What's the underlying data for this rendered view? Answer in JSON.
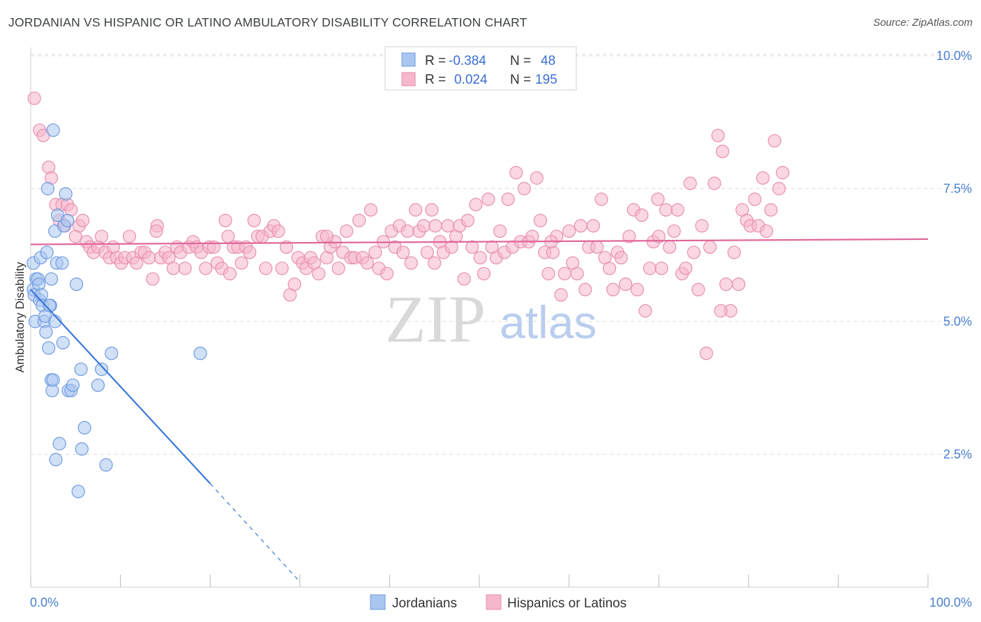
{
  "title": "JORDANIAN VS HISPANIC OR LATINO AMBULATORY DISABILITY CORRELATION CHART",
  "source": "Source: ZipAtlas.com",
  "watermark": {
    "part1": "ZIP",
    "part2": "atlas"
  },
  "colors": {
    "blue_fill": "#a9c6f0",
    "blue_stroke": "#6f9be0",
    "blue_line": "#3a78d8",
    "pink_fill": "#f5b7cb",
    "pink_stroke": "#e88fae",
    "pink_line": "#e0679a",
    "grid": "#dddddd",
    "tick_label": "#4a7fd0"
  },
  "legend": {
    "rows": [
      {
        "r_label": "R = ",
        "r_value": "-0.384",
        "n_label": "N = ",
        "n_value": "48"
      },
      {
        "r_label": "R = ",
        "r_value": "0.024",
        "n_label": "N = ",
        "n_value": "195"
      }
    ]
  },
  "chart_data": {
    "type": "scatter",
    "xlabel": "",
    "ylabel": "Ambulatory Disability",
    "xlim": [
      0,
      100
    ],
    "ylim": [
      0,
      10.5
    ],
    "x_tick_labels": [
      "0.0%",
      "100.0%"
    ],
    "y_ticks": [
      2.5,
      5.0,
      7.5,
      10.0
    ],
    "y_tick_labels": [
      "2.5%",
      "5.0%",
      "7.5%",
      "10.0%"
    ],
    "grid": "horizontal dashed",
    "legend_position": "top-center",
    "series": [
      {
        "name": "Jordanians",
        "trend": {
          "x0": 0,
          "y0": 5.6,
          "x1": 20,
          "y1": 1.95,
          "dash_to_x": 30,
          "dash_to_y": 0.1
        },
        "points": [
          [
            0.3,
            6.1
          ],
          [
            0.3,
            5.6
          ],
          [
            0.4,
            5.5
          ],
          [
            0.5,
            5.0
          ],
          [
            0.6,
            5.8
          ],
          [
            0.8,
            5.8
          ],
          [
            0.9,
            5.7
          ],
          [
            1.0,
            5.4
          ],
          [
            1.1,
            6.2
          ],
          [
            1.2,
            5.5
          ],
          [
            1.3,
            5.3
          ],
          [
            1.5,
            5.0
          ],
          [
            1.6,
            5.1
          ],
          [
            1.7,
            4.8
          ],
          [
            1.8,
            6.3
          ],
          [
            1.9,
            7.5
          ],
          [
            2.0,
            4.5
          ],
          [
            2.2,
            5.3
          ],
          [
            2.3,
            5.8
          ],
          [
            2.3,
            3.9
          ],
          [
            2.4,
            3.7
          ],
          [
            2.5,
            3.9
          ],
          [
            2.5,
            8.6
          ],
          [
            2.7,
            5.0
          ],
          [
            2.7,
            6.7
          ],
          [
            2.8,
            2.4
          ],
          [
            2.9,
            6.1
          ],
          [
            3.0,
            7.0
          ],
          [
            3.2,
            2.7
          ],
          [
            3.5,
            6.1
          ],
          [
            3.6,
            4.6
          ],
          [
            3.7,
            6.8
          ],
          [
            3.9,
            7.4
          ],
          [
            4.1,
            6.9
          ],
          [
            4.2,
            3.7
          ],
          [
            4.5,
            3.7
          ],
          [
            4.7,
            3.8
          ],
          [
            5.1,
            5.7
          ],
          [
            5.6,
            4.1
          ],
          [
            5.7,
            2.6
          ],
          [
            6.0,
            3.0
          ],
          [
            7.5,
            3.8
          ],
          [
            7.9,
            4.1
          ],
          [
            8.4,
            2.3
          ],
          [
            9.0,
            4.4
          ],
          [
            18.9,
            4.4
          ],
          [
            2.1,
            5.3
          ],
          [
            5.3,
            1.8
          ]
        ]
      },
      {
        "name": "Hispanics or Latinos",
        "trend": {
          "x0": 0,
          "y0": 6.45,
          "x1": 100,
          "y1": 6.55
        },
        "points": [
          [
            0.4,
            9.2
          ],
          [
            1.0,
            8.6
          ],
          [
            1.4,
            8.5
          ],
          [
            2.0,
            7.9
          ],
          [
            2.3,
            7.7
          ],
          [
            2.8,
            7.2
          ],
          [
            3.2,
            6.9
          ],
          [
            3.5,
            7.2
          ],
          [
            3.8,
            6.8
          ],
          [
            4.1,
            7.2
          ],
          [
            4.5,
            7.1
          ],
          [
            5.0,
            6.6
          ],
          [
            5.4,
            6.8
          ],
          [
            5.8,
            6.9
          ],
          [
            6.2,
            6.5
          ],
          [
            6.6,
            6.4
          ],
          [
            7.0,
            6.3
          ],
          [
            7.5,
            6.4
          ],
          [
            7.9,
            6.6
          ],
          [
            8.3,
            6.3
          ],
          [
            8.8,
            6.2
          ],
          [
            9.2,
            6.4
          ],
          [
            9.6,
            6.2
          ],
          [
            10.1,
            6.1
          ],
          [
            10.5,
            6.2
          ],
          [
            11.0,
            6.6
          ],
          [
            11.4,
            6.2
          ],
          [
            11.8,
            6.1
          ],
          [
            12.3,
            6.3
          ],
          [
            12.7,
            6.3
          ],
          [
            13.2,
            6.2
          ],
          [
            13.6,
            5.8
          ],
          [
            14.1,
            6.8
          ],
          [
            14.5,
            6.2
          ],
          [
            15.0,
            6.3
          ],
          [
            15.4,
            6.2
          ],
          [
            15.9,
            6.0
          ],
          [
            16.3,
            6.4
          ],
          [
            16.7,
            6.3
          ],
          [
            17.2,
            6.0
          ],
          [
            17.6,
            6.4
          ],
          [
            18.1,
            6.5
          ],
          [
            18.5,
            6.4
          ],
          [
            19.0,
            6.3
          ],
          [
            19.5,
            6.0
          ],
          [
            19.9,
            6.4
          ],
          [
            20.4,
            6.4
          ],
          [
            20.8,
            6.1
          ],
          [
            21.3,
            6.0
          ],
          [
            21.7,
            6.9
          ],
          [
            22.2,
            5.9
          ],
          [
            22.6,
            6.4
          ],
          [
            23.1,
            6.4
          ],
          [
            23.5,
            6.1
          ],
          [
            24.0,
            6.4
          ],
          [
            24.4,
            6.3
          ],
          [
            24.9,
            6.9
          ],
          [
            25.3,
            6.6
          ],
          [
            25.8,
            6.6
          ],
          [
            26.2,
            6.0
          ],
          [
            26.7,
            6.7
          ],
          [
            27.1,
            6.8
          ],
          [
            27.6,
            6.7
          ],
          [
            28.0,
            6.0
          ],
          [
            28.5,
            6.4
          ],
          [
            28.9,
            5.5
          ],
          [
            29.4,
            5.7
          ],
          [
            29.8,
            6.2
          ],
          [
            30.3,
            6.1
          ],
          [
            30.7,
            6.0
          ],
          [
            31.2,
            6.2
          ],
          [
            31.6,
            6.1
          ],
          [
            32.1,
            5.9
          ],
          [
            32.5,
            6.6
          ],
          [
            33.0,
            6.2
          ],
          [
            33.4,
            6.4
          ],
          [
            33.9,
            6.5
          ],
          [
            34.3,
            6.0
          ],
          [
            34.8,
            6.3
          ],
          [
            35.2,
            6.7
          ],
          [
            35.7,
            6.2
          ],
          [
            36.1,
            6.2
          ],
          [
            36.6,
            6.9
          ],
          [
            37.0,
            6.2
          ],
          [
            37.5,
            6.1
          ],
          [
            37.9,
            7.1
          ],
          [
            38.4,
            6.3
          ],
          [
            38.8,
            6.0
          ],
          [
            39.3,
            6.5
          ],
          [
            39.7,
            5.9
          ],
          [
            40.2,
            6.7
          ],
          [
            40.6,
            6.4
          ],
          [
            41.1,
            6.8
          ],
          [
            41.5,
            6.3
          ],
          [
            42.0,
            6.7
          ],
          [
            42.4,
            6.1
          ],
          [
            42.9,
            7.1
          ],
          [
            43.3,
            6.7
          ],
          [
            43.8,
            6.8
          ],
          [
            44.2,
            6.3
          ],
          [
            44.7,
            7.1
          ],
          [
            45.1,
            6.8
          ],
          [
            45.6,
            6.5
          ],
          [
            46.0,
            6.3
          ],
          [
            46.5,
            6.8
          ],
          [
            46.9,
            6.4
          ],
          [
            47.4,
            6.6
          ],
          [
            47.8,
            6.8
          ],
          [
            48.3,
            5.8
          ],
          [
            48.7,
            6.9
          ],
          [
            49.2,
            6.4
          ],
          [
            49.6,
            7.2
          ],
          [
            50.1,
            6.2
          ],
          [
            50.5,
            5.9
          ],
          [
            51.0,
            7.3
          ],
          [
            51.4,
            6.4
          ],
          [
            51.9,
            6.2
          ],
          [
            52.3,
            6.7
          ],
          [
            52.8,
            6.3
          ],
          [
            53.2,
            7.3
          ],
          [
            53.7,
            6.4
          ],
          [
            54.1,
            7.8
          ],
          [
            54.6,
            6.5
          ],
          [
            55.0,
            7.5
          ],
          [
            55.5,
            6.5
          ],
          [
            55.9,
            6.6
          ],
          [
            56.4,
            7.7
          ],
          [
            56.8,
            6.9
          ],
          [
            57.3,
            6.3
          ],
          [
            57.7,
            5.9
          ],
          [
            58.2,
            6.3
          ],
          [
            58.6,
            6.6
          ],
          [
            59.1,
            5.5
          ],
          [
            59.5,
            5.9
          ],
          [
            60.0,
            6.7
          ],
          [
            60.4,
            6.1
          ],
          [
            60.9,
            5.9
          ],
          [
            61.3,
            6.8
          ],
          [
            61.8,
            5.6
          ],
          [
            62.2,
            6.4
          ],
          [
            62.7,
            6.8
          ],
          [
            63.1,
            6.4
          ],
          [
            63.6,
            7.3
          ],
          [
            64.0,
            6.2
          ],
          [
            64.5,
            6.0
          ],
          [
            64.9,
            5.6
          ],
          [
            65.4,
            6.3
          ],
          [
            65.8,
            6.2
          ],
          [
            66.3,
            5.7
          ],
          [
            66.7,
            6.6
          ],
          [
            67.2,
            7.1
          ],
          [
            67.6,
            5.6
          ],
          [
            68.1,
            7.0
          ],
          [
            68.5,
            5.2
          ],
          [
            69.0,
            6.0
          ],
          [
            69.4,
            6.5
          ],
          [
            69.9,
            7.3
          ],
          [
            70.3,
            6.0
          ],
          [
            70.8,
            7.1
          ],
          [
            71.2,
            6.4
          ],
          [
            71.7,
            6.7
          ],
          [
            72.1,
            7.1
          ],
          [
            72.6,
            5.9
          ],
          [
            73.0,
            6.0
          ],
          [
            73.5,
            7.6
          ],
          [
            73.9,
            6.3
          ],
          [
            74.4,
            5.6
          ],
          [
            74.8,
            6.8
          ],
          [
            75.3,
            4.4
          ],
          [
            75.7,
            6.4
          ],
          [
            76.2,
            7.6
          ],
          [
            76.6,
            8.5
          ],
          [
            77.1,
            8.2
          ],
          [
            77.5,
            5.7
          ],
          [
            78.0,
            5.2
          ],
          [
            78.4,
            6.3
          ],
          [
            78.9,
            5.7
          ],
          [
            79.3,
            7.1
          ],
          [
            79.8,
            6.9
          ],
          [
            80.2,
            6.8
          ],
          [
            80.7,
            7.3
          ],
          [
            81.1,
            6.8
          ],
          [
            81.6,
            7.7
          ],
          [
            82.0,
            6.7
          ],
          [
            82.5,
            7.1
          ],
          [
            82.9,
            8.4
          ],
          [
            83.4,
            7.5
          ],
          [
            83.8,
            7.8
          ],
          [
            76.9,
            5.2
          ],
          [
            70.0,
            6.6
          ],
          [
            58.0,
            6.5
          ],
          [
            45.0,
            6.1
          ],
          [
            33.0,
            6.6
          ],
          [
            22.0,
            6.6
          ],
          [
            14.0,
            6.7
          ]
        ]
      }
    ]
  },
  "bottom_legend": [
    "Jordanians",
    "Hispanics or Latinos"
  ]
}
